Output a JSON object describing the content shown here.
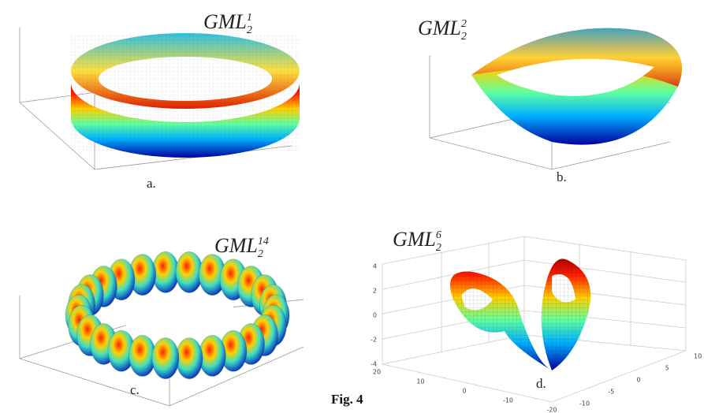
{
  "panels": [
    {
      "title": {
        "base": "GML",
        "sub": "2",
        "sup": "1"
      },
      "label": "a."
    },
    {
      "title": {
        "base": "GML",
        "sub": "2",
        "sup": "2"
      },
      "label": "b."
    },
    {
      "title": {
        "base": "GML",
        "sub": "2",
        "sup": "14"
      },
      "label": "c."
    },
    {
      "title": {
        "base": "GML",
        "sub": "2",
        "sup": "6"
      },
      "label": "d.",
      "zticks": [
        "4",
        "2",
        "0",
        "-2",
        "-4"
      ],
      "xticks": [
        "20",
        "10",
        "0",
        "-10",
        "-20"
      ],
      "yticks": [
        "-10",
        "-5",
        "0",
        "5",
        "10"
      ]
    }
  ],
  "caption": "Fig. 4"
}
